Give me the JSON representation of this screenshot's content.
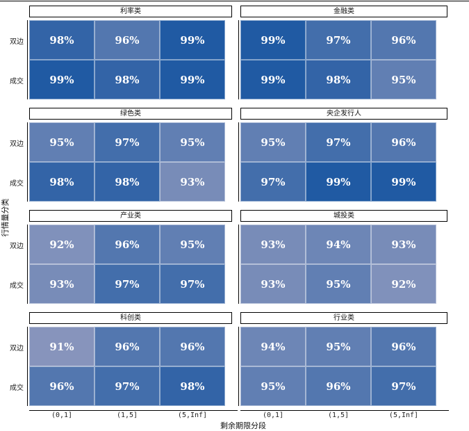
{
  "chart_data": {
    "type": "heatmap",
    "xlabel": "剩余期限分段",
    "ylabel": "行情量分类",
    "x_categories": [
      "(0,1]",
      "(1,5]",
      "(5,Inf]"
    ],
    "y_categories": [
      "双边",
      "成交"
    ],
    "value_unit": "%",
    "color_low": "#8a96bd",
    "color_high": "#0d4f9e",
    "panels": [
      {
        "title": "利率类",
        "rows": [
          {
            "label": "双边",
            "values": [
              98,
              96,
              99
            ]
          },
          {
            "label": "成交",
            "values": [
              99,
              98,
              99
            ]
          }
        ]
      },
      {
        "title": "金融类",
        "rows": [
          {
            "label": "双边",
            "values": [
              99,
              97,
              96
            ]
          },
          {
            "label": "成交",
            "values": [
              99,
              98,
              95
            ]
          }
        ]
      },
      {
        "title": "绿色类",
        "rows": [
          {
            "label": "双边",
            "values": [
              95,
              97,
              95
            ]
          },
          {
            "label": "成交",
            "values": [
              98,
              98,
              93
            ]
          }
        ]
      },
      {
        "title": "央企发行人",
        "rows": [
          {
            "label": "双边",
            "values": [
              95,
              97,
              96
            ]
          },
          {
            "label": "成交",
            "values": [
              97,
              99,
              99
            ]
          }
        ]
      },
      {
        "title": "产业类",
        "rows": [
          {
            "label": "双边",
            "values": [
              92,
              96,
              95
            ]
          },
          {
            "label": "成交",
            "values": [
              93,
              97,
              97
            ]
          }
        ]
      },
      {
        "title": "城投类",
        "rows": [
          {
            "label": "双边",
            "values": [
              93,
              94,
              93
            ]
          },
          {
            "label": "成交",
            "values": [
              93,
              95,
              92
            ]
          }
        ]
      },
      {
        "title": "科创类",
        "rows": [
          {
            "label": "双边",
            "values": [
              91,
              96,
              96
            ]
          },
          {
            "label": "成交",
            "values": [
              96,
              97,
              98
            ]
          }
        ]
      },
      {
        "title": "行业类",
        "rows": [
          {
            "label": "双边",
            "values": [
              94,
              95,
              96
            ]
          },
          {
            "label": "成交",
            "values": [
              95,
              96,
              97
            ]
          }
        ]
      }
    ]
  }
}
